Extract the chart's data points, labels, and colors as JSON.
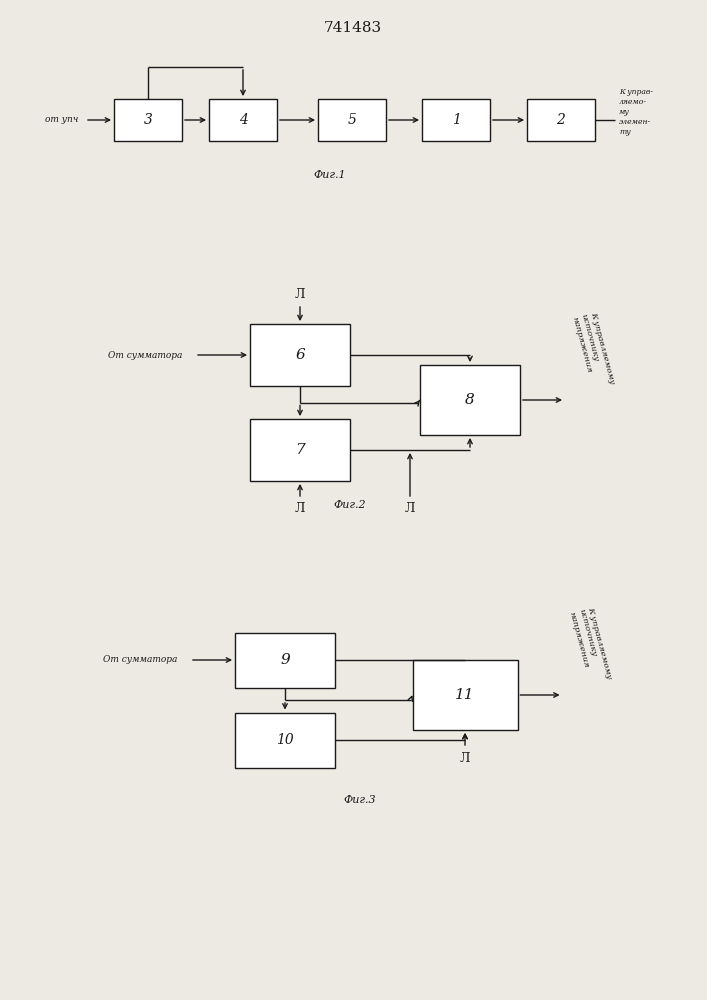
{
  "title": "741483",
  "bg_color": "#ede9e3",
  "line_color": "#1a1a1a",
  "fig1_label": "Фиг.1",
  "fig2_label": "Фиг.2",
  "fig3_label": "Фиг.3",
  "from_upch": "от упч",
  "to_element": "К управ-\nляемо-\nму\nэлемен-\nту",
  "from_sum": "От сумматора",
  "to_source": "К управляемому\nисточнику\nнапряжения"
}
